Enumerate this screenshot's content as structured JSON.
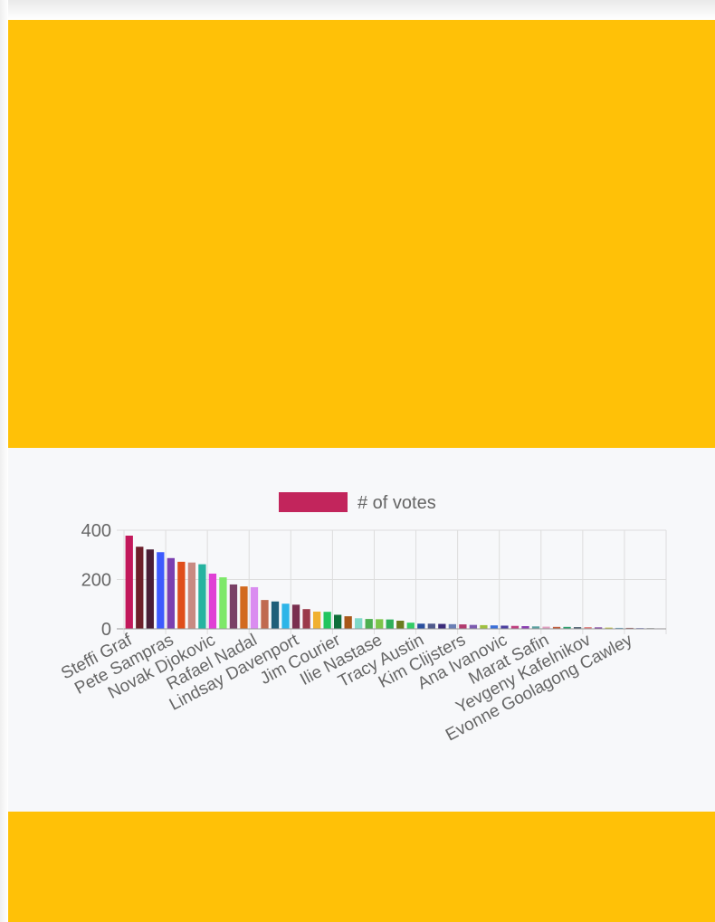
{
  "colors": {
    "panel": "#FFC107",
    "chart_bg": "#F7F8FA",
    "grid": "#DDDDDD",
    "axis": "#999999",
    "text": "#666666"
  },
  "chart_data": {
    "type": "bar",
    "title": "",
    "xlabel": "",
    "ylabel": "",
    "ylim": [
      0,
      400
    ],
    "yticks": [
      0,
      200,
      400
    ],
    "grid": true,
    "legend_position": "top",
    "legend": {
      "label": "# of votes",
      "color": "#C2255C"
    },
    "tick_labels": [
      "Steffi Graf",
      "Pete Sampras",
      "Novak Djokovic",
      "Rafael Nadal",
      "Lindsay Davenport",
      "Jim Courier",
      "Ilie Nastase",
      "Tracy Austin",
      "Kim Clijsters",
      "Ana Ivanovic",
      "Marat Safin",
      "Yevgeny Kafelnikov",
      "Evonne Goolagong Cawley"
    ],
    "series": [
      {
        "name": "# of votes",
        "values": [
          378,
          333,
          322,
          311,
          287,
          272,
          269,
          262,
          224,
          209,
          180,
          172,
          169,
          117,
          111,
          102,
          98,
          80,
          70,
          69,
          57,
          51,
          43,
          40,
          39,
          38,
          33,
          25,
          21,
          21,
          20,
          19,
          18,
          16,
          15,
          14,
          13,
          12,
          11,
          10,
          9,
          8,
          8,
          7,
          7,
          6,
          5,
          4,
          4,
          3,
          3,
          2
        ],
        "colors": [
          "#C2185B",
          "#6D1F2A",
          "#4A1E36",
          "#3D5AFE",
          "#7B3FB0",
          "#E04E1B",
          "#C88A82",
          "#26B3A0",
          "#E040D5",
          "#7EE86A",
          "#7A4066",
          "#D2691E",
          "#DA8CF0",
          "#C06A50",
          "#1F5F7A",
          "#2EB5E8",
          "#7A2F4F",
          "#9B3A4A",
          "#F0B030",
          "#22C55E",
          "#0F6E3A",
          "#A9581A",
          "#7FD9C9",
          "#4CAF50",
          "#7CC54A",
          "#2EAF5A",
          "#6B7A1F",
          "#33CC66",
          "#2A4F9E",
          "#505A8C",
          "#3B2B7A",
          "#6A7FB5",
          "#B23A6E",
          "#7C5BB0",
          "#A0C040",
          "#3A6FD8",
          "#4B3FA0",
          "#C04080",
          "#8A3FB0",
          "#5AA0A0",
          "#E0A0C0",
          "#C06040",
          "#30A070",
          "#506070",
          "#E08080",
          "#8040A0",
          "#C0C040",
          "#60A0C0",
          "#A06060",
          "#6060C0",
          "#909090",
          "#C090C0"
        ]
      }
    ]
  }
}
